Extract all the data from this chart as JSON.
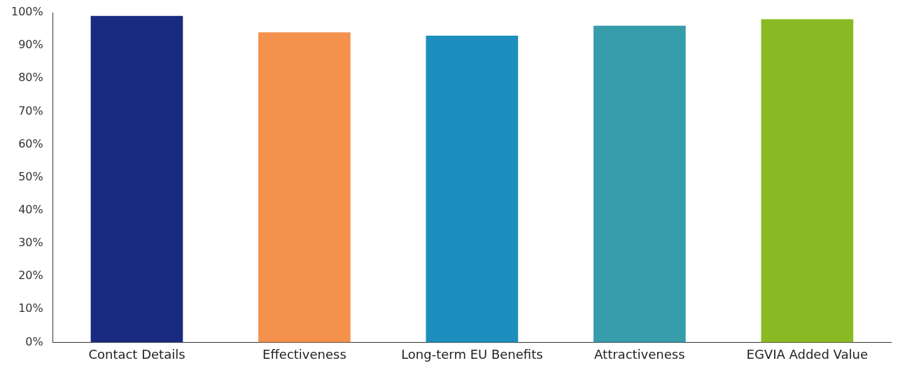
{
  "chart_data": {
    "type": "bar",
    "categories": [
      "Contact Details",
      "Effectiveness",
      "Long-term EU Benefits",
      "Attractiveness",
      "EGVIA Added Value"
    ],
    "values": [
      99,
      94,
      93,
      96,
      98
    ],
    "colors": [
      "#1a2a80",
      "#f4914c",
      "#1d8fbf",
      "#379dab",
      "#89ba24"
    ],
    "ylim": [
      0,
      100
    ],
    "yticks": [
      {
        "value": 0,
        "label": "0%"
      },
      {
        "value": 10,
        "label": "10%"
      },
      {
        "value": 20,
        "label": "20%"
      },
      {
        "value": 30,
        "label": "30%"
      },
      {
        "value": 40,
        "label": "40%"
      },
      {
        "value": 50,
        "label": "50%"
      },
      {
        "value": 60,
        "label": "60%"
      },
      {
        "value": 70,
        "label": "70%"
      },
      {
        "value": 80,
        "label": "80%"
      },
      {
        "value": 90,
        "label": "90%"
      },
      {
        "value": 100,
        "label": "100%"
      }
    ],
    "grid": false,
    "legend": false
  }
}
